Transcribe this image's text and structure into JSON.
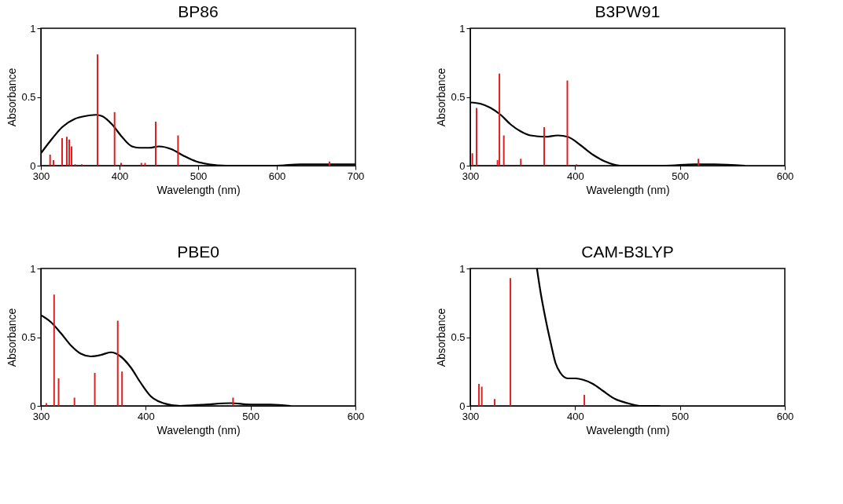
{
  "chart_data": [
    {
      "type": "line",
      "title": "BP86",
      "xlabel": "Wavelength (nm)",
      "ylabel": "Absorbance",
      "xlim": [
        300,
        700
      ],
      "xticks": [
        300,
        400,
        500,
        600,
        700
      ],
      "ylim": [
        0,
        1
      ],
      "yticks": [
        0,
        0.5,
        1
      ],
      "series": [
        {
          "color": "#000000",
          "x": [
            300,
            314.8,
            327,
            343,
            355.8,
            370,
            378,
            390.5,
            403,
            415.8,
            425,
            438,
            450,
            466,
            482,
            497.8,
            513.6,
            535.6,
            598.7,
            630,
            665,
            700
          ],
          "values": [
            0.09,
            0.2,
            0.28,
            0.34,
            0.36,
            0.37,
            0.36,
            0.3,
            0.21,
            0.14,
            0.13,
            0.13,
            0.14,
            0.12,
            0.07,
            0.03,
            0.01,
            0,
            0,
            0.01,
            0.01,
            0.01
          ]
        },
        {
          "type": "bar",
          "color": "#e02020",
          "x": [
            311.7,
            316,
            327,
            333,
            336,
            339,
            343.5,
            352,
            372,
            393.7,
            402,
            427.8,
            432.5,
            446,
            474.4,
            667
          ],
          "values": [
            0.08,
            0.04,
            0.2,
            0.21,
            0.19,
            0.14,
            0.01,
            0.01,
            0.81,
            0.39,
            0.02,
            0.02,
            0.02,
            0.32,
            0.22,
            0.03
          ]
        }
      ]
    },
    {
      "type": "line",
      "title": "B3PW91",
      "xlabel": "Wavelength (nm)",
      "ylabel": "Absorbance",
      "xlim": [
        300,
        600
      ],
      "xticks": [
        300,
        400,
        500,
        600
      ],
      "ylim": [
        0,
        1
      ],
      "yticks": [
        0,
        0.5,
        1
      ],
      "series": [
        {
          "color": "#000000",
          "x": [
            300,
            310,
            319.5,
            329,
            338.5,
            348,
            357.5,
            371.7,
            383.6,
            393,
            405,
            416.9,
            428.7,
            443,
            462,
            485.7,
            514,
            533,
            561.8
          ],
          "values": [
            0.46,
            0.45,
            0.42,
            0.37,
            0.3,
            0.25,
            0.22,
            0.21,
            0.22,
            0.21,
            0.15,
            0.08,
            0.03,
            0,
            0,
            0,
            0.01,
            0.01,
            0
          ]
        },
        {
          "type": "bar",
          "color": "#e02020",
          "x": [
            302,
            306,
            326,
            327.8,
            332,
            348.2,
            370.5,
            392.6,
            401.4,
            517.6
          ],
          "values": [
            0.09,
            0.42,
            0.04,
            0.67,
            0.22,
            0.05,
            0.28,
            0.62,
            0.01,
            0.05
          ]
        }
      ]
    },
    {
      "type": "line",
      "title": "PBE0",
      "xlabel": "Wavelength (nm)",
      "ylabel": "Absorbance",
      "xlim": [
        300,
        600
      ],
      "xticks": [
        300,
        400,
        500,
        600
      ],
      "ylim": [
        0,
        1
      ],
      "yticks": [
        0,
        0.5,
        1
      ],
      "series": [
        {
          "color": "#000000",
          "x": [
            300,
            309.5,
            319,
            328.6,
            338,
            347.6,
            357,
            366.7,
            376,
            385.7,
            395,
            404.8,
            416.7,
            433,
            457,
            481,
            500,
            519,
            538
          ],
          "values": [
            0.66,
            0.61,
            0.53,
            0.44,
            0.38,
            0.36,
            0.37,
            0.39,
            0.36,
            0.28,
            0.17,
            0.07,
            0.02,
            0,
            0.01,
            0.02,
            0.01,
            0.01,
            0
          ]
        },
        {
          "type": "bar",
          "color": "#e02020",
          "x": [
            305.2,
            312.6,
            316.9,
            332,
            351.4,
            373.3,
            377.4,
            483.3
          ],
          "values": [
            0.02,
            0.81,
            0.2,
            0.06,
            0.24,
            0.62,
            0.25,
            0.06
          ]
        }
      ]
    },
    {
      "type": "line",
      "title": "CAM-B3LYP",
      "xlabel": "Wavelength (nm)",
      "ylabel": "Absorbance",
      "xlim": [
        300,
        600
      ],
      "xticks": [
        300,
        400,
        500,
        600
      ],
      "ylim": [
        0,
        1
      ],
      "yticks": [
        0,
        0.5,
        1
      ],
      "series": [
        {
          "color": "#000000",
          "x": [
            363.6,
            367,
            371.9,
            376.7,
            381.4,
            386,
            393,
            400.5,
            407.6,
            417,
            426.4,
            438.2,
            450,
            462,
            481
          ],
          "values": [
            1.0,
            0.83,
            0.63,
            0.46,
            0.31,
            0.24,
            0.2,
            0.2,
            0.19,
            0.16,
            0.11,
            0.05,
            0.02,
            0,
            0
          ]
        },
        {
          "type": "bar",
          "color": "#e02020",
          "x": [
            308.3,
            311,
            323.3,
            338.3,
            408.8
          ],
          "values": [
            0.16,
            0.14,
            0.05,
            0.93,
            0.08
          ]
        }
      ]
    }
  ]
}
